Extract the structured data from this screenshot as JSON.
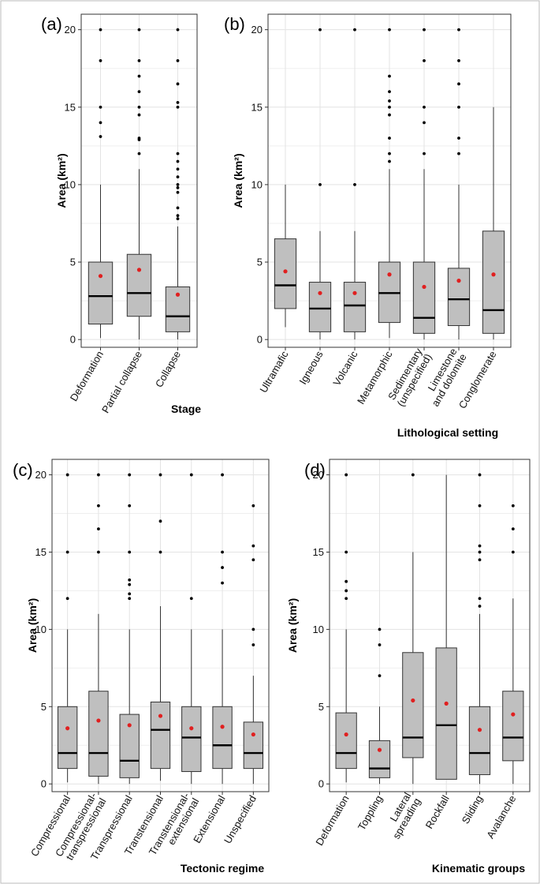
{
  "figure": {
    "colors": {
      "box_fill": "#bfbfbf",
      "box_stroke": "#333333",
      "mean": "#e02020",
      "grid": "#e3e3e3",
      "outlier": "#000000"
    }
  },
  "chart_data": [
    {
      "type": "boxplot",
      "panel_label": "(a)",
      "ylabel": "Area (km²)",
      "xlabel": "Stage",
      "ylim": [
        -0.5,
        21
      ],
      "yticks": [
        0,
        5,
        10,
        15,
        20
      ],
      "categories": [
        "Deformation",
        "Partial collapse",
        "Collapse"
      ],
      "boxes": [
        {
          "whisker_low": 0.1,
          "q1": 1.0,
          "median": 2.8,
          "q3": 5.0,
          "whisker_high": 10.0,
          "mean": 4.1,
          "outliers": [
            13.1,
            14.0,
            15.0,
            18.0,
            20.0
          ]
        },
        {
          "whisker_low": 0.0,
          "q1": 1.5,
          "median": 3.0,
          "q3": 5.5,
          "whisker_high": 11.0,
          "mean": 4.5,
          "outliers": [
            12.0,
            12.9,
            13.0,
            14.5,
            15.0,
            16.0,
            17.0,
            18.0,
            20.0
          ]
        },
        {
          "whisker_low": 0.0,
          "q1": 0.5,
          "median": 1.5,
          "q3": 3.4,
          "whisker_high": 7.3,
          "mean": 2.9,
          "outliers": [
            7.8,
            8.0,
            8.5,
            9.5,
            9.8,
            10.0,
            10.5,
            11.0,
            11.5,
            12.0,
            15.0,
            15.3,
            16.5,
            18.0,
            20.0
          ]
        }
      ]
    },
    {
      "type": "boxplot",
      "panel_label": "(b)",
      "ylabel": "Area (km²)",
      "xlabel": "Lithological setting",
      "ylim": [
        -0.5,
        21
      ],
      "yticks": [
        0,
        5,
        10,
        15,
        20
      ],
      "categories": [
        "Ultramafic",
        "Igneous",
        "Volcanic",
        "Metamorphic",
        "Sedimentary\n(unspecified)",
        "Limestone\nand dolomite",
        "Conglomerate"
      ],
      "boxes": [
        {
          "whisker_low": 0.8,
          "q1": 2.0,
          "median": 3.5,
          "q3": 6.5,
          "whisker_high": 10.0,
          "mean": 4.4,
          "outliers": []
        },
        {
          "whisker_low": 0.0,
          "q1": 0.5,
          "median": 2.0,
          "q3": 3.7,
          "whisker_high": 7.0,
          "mean": 3.0,
          "outliers": [
            10.0,
            20.0
          ]
        },
        {
          "whisker_low": 0.0,
          "q1": 0.5,
          "median": 2.2,
          "q3": 3.7,
          "whisker_high": 7.0,
          "mean": 3.0,
          "outliers": [
            10.0,
            20.0
          ]
        },
        {
          "whisker_low": 0.1,
          "q1": 1.1,
          "median": 3.0,
          "q3": 5.0,
          "whisker_high": 11.0,
          "mean": 4.2,
          "outliers": [
            11.5,
            12.0,
            13.0,
            14.5,
            15.0,
            15.4,
            16.0,
            17.0,
            20.0
          ]
        },
        {
          "whisker_low": 0.0,
          "q1": 0.4,
          "median": 1.4,
          "q3": 5.0,
          "whisker_high": 11.0,
          "mean": 3.4,
          "outliers": [
            12.0,
            14.0,
            15.0,
            18.0,
            20.0
          ]
        },
        {
          "whisker_low": 0.0,
          "q1": 0.9,
          "median": 2.6,
          "q3": 4.6,
          "whisker_high": 10.0,
          "mean": 3.8,
          "outliers": [
            12.0,
            13.0,
            15.0,
            16.5,
            18.0,
            20.0
          ]
        },
        {
          "whisker_low": 0.0,
          "q1": 0.4,
          "median": 1.9,
          "q3": 7.0,
          "whisker_high": 15.0,
          "mean": 4.2,
          "outliers": []
        }
      ]
    },
    {
      "type": "boxplot",
      "panel_label": "(c)",
      "ylabel": "Area (km²)",
      "xlabel": "Tectonic regime",
      "ylim": [
        -0.5,
        21
      ],
      "yticks": [
        0,
        5,
        10,
        15,
        20
      ],
      "categories": [
        "Compressional",
        "Compressional-\ntranspressional",
        "Transpressional",
        "Transtensional",
        "Transtensional-\nextensional",
        "Extensional",
        "Unspecified"
      ],
      "boxes": [
        {
          "whisker_low": 0.1,
          "q1": 1.0,
          "median": 2.0,
          "q3": 5.0,
          "whisker_high": 10.0,
          "mean": 3.6,
          "outliers": [
            12.0,
            15.0,
            20.0
          ]
        },
        {
          "whisker_low": 0.0,
          "q1": 0.5,
          "median": 2.0,
          "q3": 6.0,
          "whisker_high": 11.0,
          "mean": 4.1,
          "outliers": [
            15.0,
            16.5,
            18.0,
            20.0
          ]
        },
        {
          "whisker_low": 0.0,
          "q1": 0.4,
          "median": 1.5,
          "q3": 4.5,
          "whisker_high": 10.0,
          "mean": 3.8,
          "outliers": [
            12.0,
            12.3,
            12.9,
            13.2,
            15.0,
            18.0,
            20.0
          ]
        },
        {
          "whisker_low": 0.2,
          "q1": 1.0,
          "median": 3.5,
          "q3": 5.3,
          "whisker_high": 11.5,
          "mean": 4.4,
          "outliers": [
            15.0,
            17.0,
            20.0
          ]
        },
        {
          "whisker_low": 0.0,
          "q1": 0.8,
          "median": 3.0,
          "q3": 5.0,
          "whisker_high": 10.0,
          "mean": 3.6,
          "outliers": [
            12.0,
            20.0
          ]
        },
        {
          "whisker_low": 0.0,
          "q1": 1.0,
          "median": 2.5,
          "q3": 5.0,
          "whisker_high": 10.0,
          "mean": 3.7,
          "outliers": [
            13.0,
            14.0,
            15.0,
            20.0
          ]
        },
        {
          "whisker_low": 0.0,
          "q1": 1.0,
          "median": 2.0,
          "q3": 4.0,
          "whisker_high": 7.0,
          "mean": 3.2,
          "outliers": [
            9.0,
            10.0,
            14.5,
            15.4,
            18.0
          ]
        }
      ]
    },
    {
      "type": "boxplot",
      "panel_label": "(d)",
      "ylabel": "Area (km²)",
      "xlabel": "Kinematic groups",
      "ylim": [
        -0.5,
        21
      ],
      "yticks": [
        0,
        5,
        10,
        15,
        20
      ],
      "categories": [
        "Deformation",
        "Toppling",
        "Lateral\nspreading",
        "Rockfall",
        "Sliding",
        "Avalanche"
      ],
      "boxes": [
        {
          "whisker_low": 0.1,
          "q1": 1.0,
          "median": 2.0,
          "q3": 4.6,
          "whisker_high": 10.0,
          "mean": 3.2,
          "outliers": [
            12.0,
            12.5,
            13.1,
            15.0,
            20.0
          ]
        },
        {
          "whisker_low": 0.0,
          "q1": 0.4,
          "median": 1.0,
          "q3": 2.8,
          "whisker_high": 5.0,
          "mean": 2.2,
          "outliers": [
            7.0,
            9.0,
            10.0
          ]
        },
        {
          "whisker_low": 0.0,
          "q1": 1.7,
          "median": 3.0,
          "q3": 8.5,
          "whisker_high": 15.0,
          "mean": 5.4,
          "outliers": [
            20.0
          ]
        },
        {
          "whisker_low": 0.3,
          "q1": 0.3,
          "median": 3.8,
          "q3": 8.8,
          "whisker_high": 20.0,
          "mean": 5.2,
          "outliers": []
        },
        {
          "whisker_low": 0.0,
          "q1": 0.6,
          "median": 2.0,
          "q3": 5.0,
          "whisker_high": 11.0,
          "mean": 3.5,
          "outliers": [
            11.5,
            12.0,
            14.5,
            15.0,
            15.4,
            18.0,
            20.0
          ]
        },
        {
          "whisker_low": 0.0,
          "q1": 1.5,
          "median": 3.0,
          "q3": 6.0,
          "whisker_high": 12.0,
          "mean": 4.5,
          "outliers": [
            15.0,
            16.5,
            18.0
          ]
        }
      ]
    }
  ]
}
